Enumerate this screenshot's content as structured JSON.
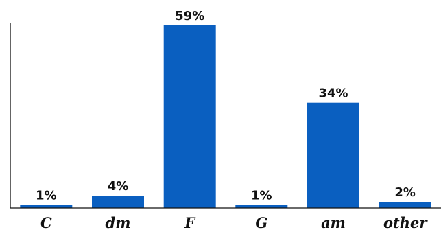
{
  "chart_data": {
    "type": "bar",
    "categories": [
      "C",
      "dm",
      "F",
      "G",
      "am",
      "other"
    ],
    "values": [
      1,
      4,
      59,
      1,
      34,
      2
    ],
    "data_labels": [
      "1%",
      "4%",
      "59%",
      "1%",
      "34%",
      "2%"
    ],
    "ylim": [
      0,
      59
    ],
    "grid": false,
    "colors": {
      "bar": "#0a5fc0"
    }
  }
}
